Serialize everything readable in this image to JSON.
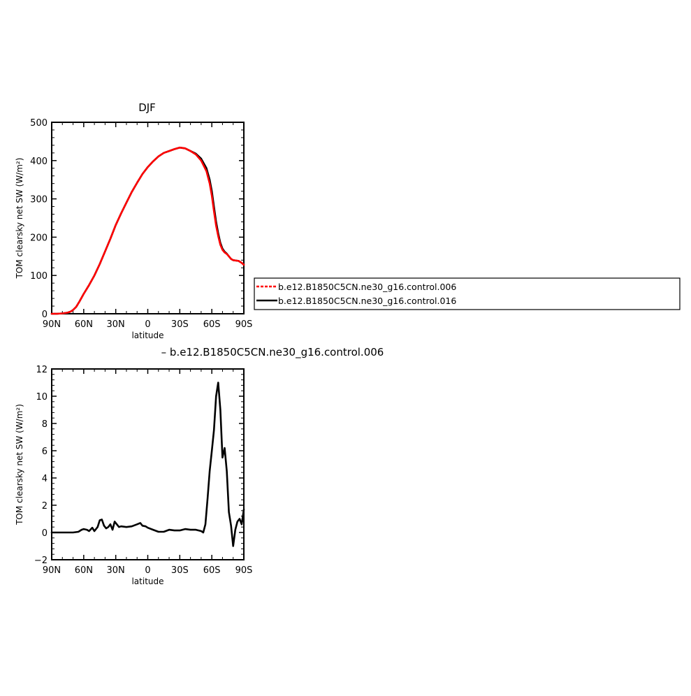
{
  "chart_data": [
    {
      "type": "line",
      "title": "DJF",
      "xlabel": "latitude",
      "ylabel": "TOM clearsky net SW (W/m²)",
      "xlim": [
        -90,
        90
      ],
      "ylim": [
        0,
        500
      ],
      "xticks": [
        -90,
        -60,
        -30,
        0,
        30,
        60,
        90
      ],
      "xtick_labels": [
        "90N",
        "60N",
        "30N",
        "0",
        "30S",
        "60S",
        "90S"
      ],
      "yticks": [
        0,
        100,
        200,
        300,
        400,
        500
      ],
      "ytick_labels": [
        "0",
        "100",
        "200",
        "300",
        "400",
        "500"
      ],
      "grid": false,
      "legend": {
        "placement": "right",
        "entries": [
          {
            "label": "b.e12.B1850C5CN.ne30_g16.control.006",
            "color": "#ff0000",
            "dash": "dashed"
          },
          {
            "label": "b.e12.B1850C5CN.ne30_g16.control.016",
            "color": "#000000",
            "dash": "solid"
          }
        ]
      },
      "series": [
        {
          "name": "b.e12.B1850C5CN.ne30_g16.control.016",
          "color": "#000000",
          "x": [
            -90,
            -85,
            -80,
            -75,
            -72,
            -70,
            -67,
            -64,
            -60,
            -55,
            -50,
            -45,
            -40,
            -35,
            -30,
            -25,
            -20,
            -15,
            -10,
            -5,
            0,
            5,
            10,
            15,
            20,
            25,
            30,
            35,
            40,
            45,
            50,
            55,
            58,
            60,
            62,
            64,
            66,
            68,
            70,
            72,
            74,
            76,
            78,
            80,
            85,
            88,
            90
          ],
          "y": [
            0,
            0,
            1,
            3,
            6,
            10,
            18,
            32,
            52,
            75,
            100,
            130,
            163,
            196,
            232,
            262,
            290,
            318,
            342,
            365,
            383,
            398,
            411,
            420,
            425,
            430,
            434,
            432,
            425,
            418,
            405,
            380,
            350,
            320,
            280,
            240,
            210,
            185,
            170,
            162,
            157,
            150,
            143,
            140,
            138,
            133,
            128
          ]
        },
        {
          "name": "b.e12.B1850C5CN.ne30_g16.control.006",
          "color": "#ff0000",
          "x": [
            -90,
            -85,
            -80,
            -75,
            -72,
            -70,
            -67,
            -64,
            -60,
            -55,
            -50,
            -45,
            -40,
            -35,
            -30,
            -25,
            -20,
            -15,
            -10,
            -5,
            0,
            5,
            10,
            15,
            20,
            25,
            30,
            35,
            40,
            45,
            50,
            55,
            58,
            60,
            62,
            64,
            66,
            68,
            70,
            72,
            74,
            76,
            78,
            80,
            85,
            88,
            90
          ],
          "y": [
            0,
            0,
            1,
            3,
            6,
            10,
            18,
            32,
            52,
            75,
            100,
            130,
            163,
            196,
            232,
            262,
            290,
            318,
            342,
            365,
            383,
            398,
            411,
            420,
            425,
            430,
            434,
            432,
            425,
            416,
            400,
            372,
            340,
            308,
            268,
            230,
            203,
            180,
            167,
            160,
            156,
            150,
            143,
            140,
            138,
            133,
            128
          ]
        }
      ]
    },
    {
      "type": "line",
      "title": "– b.e12.B1850C5CN.ne30_g16.control.006",
      "xlabel": "latitude",
      "ylabel": "TOM clearsky net SW (W/m²)",
      "xlim": [
        -90,
        90
      ],
      "ylim": [
        -2,
        12
      ],
      "xticks": [
        -90,
        -60,
        -30,
        0,
        30,
        60,
        90
      ],
      "xtick_labels": [
        "90N",
        "60N",
        "30N",
        "0",
        "30S",
        "60S",
        "90S"
      ],
      "yticks": [
        -2,
        0,
        2,
        4,
        6,
        8,
        10,
        12
      ],
      "ytick_labels": [
        "−2",
        "0",
        "2",
        "4",
        "6",
        "8",
        "10",
        "12"
      ],
      "grid": false,
      "series": [
        {
          "color": "#000000",
          "x": [
            -90,
            -80,
            -70,
            -65,
            -62,
            -60,
            -57,
            -55,
            -52,
            -50,
            -47,
            -45,
            -43,
            -41,
            -39,
            -37,
            -35,
            -33,
            -31,
            -29,
            -27,
            -25,
            -20,
            -15,
            -10,
            -7,
            -5,
            -2,
            0,
            5,
            10,
            15,
            20,
            25,
            30,
            35,
            40,
            45,
            50,
            52,
            54,
            56,
            58,
            60,
            62,
            64,
            66,
            68,
            70,
            72,
            74,
            76,
            78,
            80,
            82,
            84,
            86,
            88,
            90
          ],
          "y": [
            0,
            0,
            0,
            0.05,
            0.2,
            0.25,
            0.2,
            0.1,
            0.35,
            0.1,
            0.4,
            0.9,
            0.95,
            0.5,
            0.3,
            0.4,
            0.6,
            0.2,
            0.8,
            0.6,
            0.4,
            0.45,
            0.4,
            0.45,
            0.6,
            0.7,
            0.5,
            0.45,
            0.35,
            0.2,
            0.05,
            0.05,
            0.2,
            0.15,
            0.15,
            0.25,
            0.2,
            0.2,
            0.1,
            0.0,
            0.6,
            2.5,
            4.5,
            6.0,
            7.5,
            10.0,
            11.0,
            9.0,
            5.5,
            6.2,
            4.5,
            1.5,
            0.5,
            -1.0,
            0.2,
            0.8,
            1.0,
            0.6,
            1.7
          ]
        }
      ]
    }
  ]
}
